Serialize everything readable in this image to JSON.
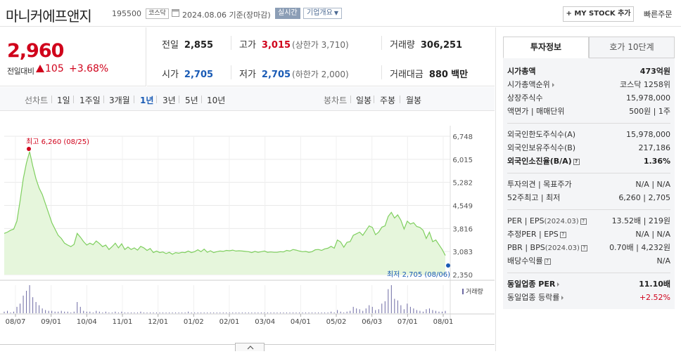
{
  "header": {
    "stock_name": "마니커에프앤지",
    "stock_code": "195500",
    "market": "코스닥",
    "date_info": "2024.08.06 기준(장마감)",
    "realtime_label": "실시간",
    "corp_info_label": "기업개요",
    "mystock_label": "+ MY STOCK 추가",
    "quick_order_label": "빠른주문"
  },
  "price": {
    "current": "2,960",
    "change_label": "전일대비",
    "change": "105",
    "change_pct": "+3.68%",
    "direction": "up"
  },
  "stats": {
    "prev_close": {
      "label": "전일",
      "value": "2,855"
    },
    "high": {
      "label": "고가",
      "value": "3,015",
      "sub": "(상한가 3,710)"
    },
    "volume": {
      "label": "거래량",
      "value": "306,251"
    },
    "open": {
      "label": "시가",
      "value": "2,705"
    },
    "low": {
      "label": "저가",
      "value": "2,705",
      "sub": "(하한가 2,000)"
    },
    "turnover": {
      "label": "거래대금",
      "value": "880",
      "unit": "백만"
    }
  },
  "range_tabs": {
    "line_label": "선차트",
    "line_items": [
      "1일",
      "1주일",
      "3개월",
      "1년",
      "3년",
      "5년",
      "10년"
    ],
    "active": "1년",
    "candle_label": "봉차트",
    "candle_items": [
      "일봉",
      "주봉",
      "월봉"
    ]
  },
  "right_panel": {
    "tabs": [
      "투자정보",
      "호가 10단계"
    ],
    "active_tab": "투자정보",
    "rows": {
      "market_cap": {
        "k": "시가총액",
        "v": "473억원"
      },
      "market_cap_rank": {
        "k": "시가총액순위",
        "v": "코스닥 1258위"
      },
      "shares": {
        "k": "상장주식수",
        "v": "15,978,000"
      },
      "face_value": {
        "k": "액면가 | 매매단위",
        "v": "500원 | 1주"
      },
      "foreign_limit": {
        "k": "외국인한도주식수(A)",
        "v": "15,978,000"
      },
      "foreign_hold": {
        "k": "외국인보유주식수(B)",
        "v": "217,186"
      },
      "foreign_ratio": {
        "k": "외국인소진율(B/A)",
        "v": "1.36%"
      },
      "opinion": {
        "k": "투자의견 | 목표주가",
        "v": "N/A | N/A"
      },
      "range_52w": {
        "k": "52주최고 | 최저",
        "v": "6,260 | 2,705"
      },
      "per_eps": {
        "k": "PER | EPS",
        "k_sub": "(2024.03)",
        "v": "13.52배 | 219원"
      },
      "est_per_eps": {
        "k": "추정PER | EPS",
        "v": "N/A | N/A"
      },
      "pbr_bps": {
        "k": "PBR | BPS",
        "k_sub": "(2024.03)",
        "v": "0.70배 | 4,232원"
      },
      "dividend": {
        "k": "배당수익률",
        "v": "N/A"
      },
      "industry_per": {
        "k": "동일업종 PER",
        "v": "11.10배"
      },
      "industry_chg": {
        "k": "동일업종 등락률",
        "v": "+2.52%"
      }
    }
  },
  "chart_data": {
    "type": "area",
    "x_labels": [
      "08/07",
      "09/01",
      "10/04",
      "11/01",
      "12/01",
      "01/02",
      "02/01",
      "03/04",
      "04/01",
      "05/02",
      "06/03",
      "07/01",
      "08/01"
    ],
    "y_ticks": [
      "6,748",
      "6,015",
      "5,282",
      "4,549",
      "3,816",
      "3,083",
      "2,350"
    ],
    "ylim": [
      2350,
      6748
    ],
    "high_label": "최고 6,260 (08/25)",
    "low_label": "최저 2,705 (08/06)",
    "volume_label": "거래량",
    "colors": {
      "line": "#7fcf5f",
      "fill": "#e6f6dc",
      "high": "#d0021b",
      "low": "#1a5bb5"
    },
    "series": [
      {
        "values": [
          3660,
          3700,
          3760,
          3800,
          4050,
          4700,
          5400,
          5900,
          6260,
          5800,
          5400,
          5100,
          4900,
          4600,
          4300,
          4000,
          3800,
          3600,
          3500,
          3350,
          3290,
          3240,
          3310,
          3660,
          3540,
          3400,
          3290,
          3350,
          3300,
          3420,
          3340,
          3240,
          3290,
          3150,
          3240,
          3350,
          3200,
          3330,
          3150,
          3230,
          3150,
          3200,
          3130,
          3250,
          3200,
          3120,
          3180,
          3050,
          3100,
          3050,
          3070,
          3020,
          3060,
          3000,
          3050,
          3030,
          3060,
          3050,
          3100,
          3050,
          3080,
          3140,
          3080,
          3160,
          3060,
          3110,
          3050,
          3080,
          3100,
          3090,
          3120,
          3110,
          3130,
          3100,
          3110,
          3100,
          3090,
          3080,
          3050,
          3090,
          3060,
          3080,
          3100,
          3060,
          3070,
          3060,
          3060,
          3080,
          3070,
          3120,
          3100,
          3150,
          3130,
          3100,
          3080,
          3090,
          3060,
          3080,
          3140,
          3150,
          3120,
          3170,
          3190,
          3250,
          3190,
          3450,
          3390,
          3220,
          3380,
          3400,
          3600,
          3650,
          3700,
          3600,
          3750,
          3900,
          3850,
          3620,
          3700,
          3860,
          3900,
          4200,
          4330,
          4150,
          4250,
          4080,
          3800,
          4050,
          3960,
          4000,
          3880,
          3850,
          3760,
          3500,
          3700,
          3400,
          3450,
          3300,
          3150,
          2960
        ]
      }
    ],
    "volume": [
      2,
      3,
      1,
      2,
      8,
      12,
      22,
      28,
      35,
      20,
      14,
      10,
      6,
      4,
      3,
      3,
      2,
      2,
      3,
      2,
      2,
      1,
      2,
      14,
      8,
      3,
      2,
      2,
      1,
      3,
      2,
      1,
      2,
      1,
      1,
      2,
      1,
      2,
      1,
      1,
      1,
      1,
      1,
      2,
      1,
      1,
      1,
      1,
      1,
      1,
      1,
      1,
      1,
      1,
      1,
      1,
      1,
      1,
      2,
      1,
      1,
      1,
      1,
      1,
      1,
      1,
      1,
      1,
      1,
      1,
      1,
      1,
      1,
      1,
      1,
      1,
      1,
      1,
      1,
      1,
      1,
      1,
      1,
      1,
      1,
      1,
      1,
      1,
      1,
      1,
      1,
      1,
      1,
      1,
      1,
      1,
      1,
      1,
      1,
      1,
      1,
      1,
      1,
      2,
      1,
      4,
      2,
      1,
      2,
      3,
      8,
      6,
      5,
      3,
      6,
      10,
      8,
      4,
      5,
      12,
      15,
      30,
      35,
      18,
      16,
      10,
      5,
      12,
      8,
      6,
      4,
      3,
      2,
      5,
      6,
      4,
      3,
      2,
      2,
      3
    ]
  }
}
